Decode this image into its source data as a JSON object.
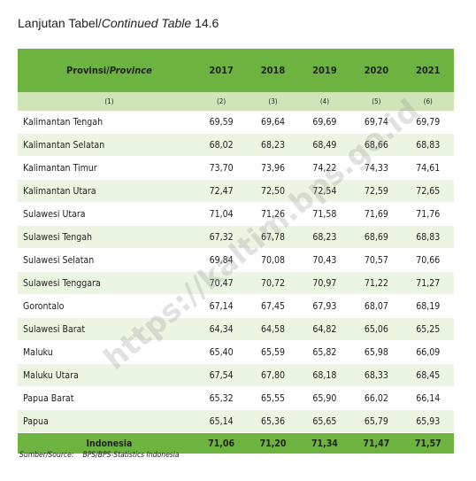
{
  "header": {
    "title_prefix": "Lanjutan Tabel/",
    "title_italic": "Continued Table",
    "title_number": "14.6"
  },
  "table": {
    "columns": [
      {
        "main": "Provinsi/",
        "italic": "Province"
      },
      "2017",
      "2018",
      "2019",
      "2020",
      "2021"
    ],
    "column_numbers": [
      "(1)",
      "(2)",
      "(3)",
      "(4)",
      "(5)",
      "(6)"
    ],
    "rows": [
      [
        "Kalimantan Tengah",
        "69,59",
        "69,64",
        "69,69",
        "69,74",
        "69,79"
      ],
      [
        "Kalimantan Selatan",
        "68,02",
        "68,23",
        "68,49",
        "68,66",
        "68,83"
      ],
      [
        "Kalimantan Timur",
        "73,70",
        "73,96",
        "74,22",
        "74,33",
        "74,61"
      ],
      [
        "Kalimantan Utara",
        "72,47",
        "72,50",
        "72,54",
        "72,59",
        "72,65"
      ],
      [
        "Sulawesi Utara",
        "71,04",
        "71,26",
        "71,58",
        "71,69",
        "71,76"
      ],
      [
        "Sulawesi Tengah",
        "67,32",
        "67,78",
        "68,23",
        "68,69",
        "68,83"
      ],
      [
        "Sulawesi Selatan",
        "69,84",
        "70,08",
        "70,43",
        "70,57",
        "70,66"
      ],
      [
        "Sulawesi Tenggara",
        "70,47",
        "70,72",
        "70,97",
        "71,22",
        "71,27"
      ],
      [
        "Gorontalo",
        "67,14",
        "67,45",
        "67,93",
        "68,07",
        "68,19"
      ],
      [
        "Sulawesi Barat",
        "64,34",
        "64,58",
        "64,82",
        "65,06",
        "65,25"
      ],
      [
        "Maluku",
        "65,40",
        "65,59",
        "65,82",
        "65,98",
        "66,09"
      ],
      [
        "Maluku Utara",
        "67,54",
        "67,80",
        "68,18",
        "68,33",
        "68,45"
      ],
      [
        "Papua Barat",
        "65,32",
        "65,55",
        "65,90",
        "66,02",
        "66,14"
      ],
      [
        "Papua",
        "65,14",
        "65,36",
        "65,65",
        "65,79",
        "65,93"
      ]
    ],
    "total": [
      "Indonesia",
      "71,06",
      "71,20",
      "71,34",
      "71,47",
      "71,57"
    ]
  },
  "footer": {
    "source_label": "Sumber/Source:",
    "source_text": "BPS/BPS-Statistics Indonesia"
  },
  "watermark": "https://kaltim.bps.go.id"
}
